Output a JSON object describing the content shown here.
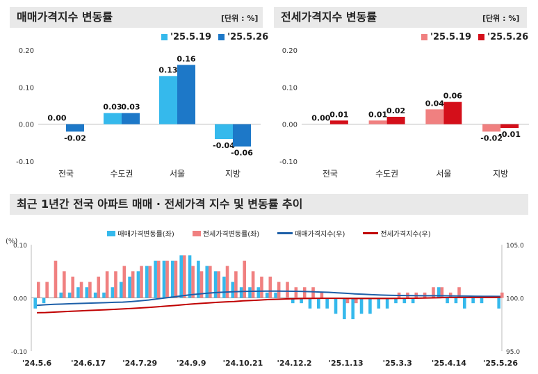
{
  "panels": [
    {
      "id": "sale",
      "title": "매매가격지수 변동률",
      "unit": "[단위 : %]",
      "chart_data": {
        "type": "bar",
        "categories": [
          "전국",
          "수도권",
          "서울",
          "지방"
        ],
        "ylim": [
          -0.1,
          0.2
        ],
        "yticks": [
          "0.20",
          "0.10",
          "0.00",
          "-0.10"
        ],
        "ytick_values": [
          0.2,
          0.1,
          0.0,
          -0.1
        ],
        "series": [
          {
            "name": "'25.5.19",
            "color": "#35b9ec",
            "values": [
              0.0,
              0.03,
              0.13,
              -0.04
            ],
            "labels": [
              "0.00",
              "0.03",
              "0.13",
              "-0.04"
            ]
          },
          {
            "name": "'25.5.26",
            "color": "#1d78c8",
            "values": [
              -0.02,
              0.03,
              0.16,
              -0.06
            ],
            "labels": [
              "-0.02",
              "0.03",
              "0.16",
              "-0.06"
            ]
          }
        ]
      }
    },
    {
      "id": "jeonse",
      "title": "전세가격지수 변동률",
      "unit": "[단위 : %]",
      "chart_data": {
        "type": "bar",
        "categories": [
          "전국",
          "수도권",
          "서울",
          "지방"
        ],
        "ylim": [
          -0.1,
          0.2
        ],
        "yticks": [
          "0.20",
          "0.10",
          "0.00",
          "-0.10"
        ],
        "ytick_values": [
          0.2,
          0.1,
          0.0,
          -0.1
        ],
        "series": [
          {
            "name": "'25.5.19",
            "color": "#f08080",
            "values": [
              0.0,
              0.01,
              0.04,
              -0.02
            ],
            "labels": [
              "0.00",
              "0.01",
              "0.04",
              "-0.02"
            ]
          },
          {
            "name": "'25.5.26",
            "color": "#d40f1a",
            "values": [
              0.01,
              0.02,
              0.06,
              -0.01
            ],
            "labels": [
              "0.01",
              "0.02",
              "0.06",
              "-0.01"
            ]
          }
        ]
      }
    }
  ],
  "trend": {
    "title": "최근 1년간 전국 아파트 매매 · 전세가격 지수 및 변동률 추이",
    "left_unit": "(%)",
    "chart_data": {
      "type": "bar-line",
      "left_ylim": [
        -0.1,
        0.1
      ],
      "left_ticks": [
        "0.10",
        "0.00",
        "-0.10"
      ],
      "left_tick_values": [
        0.1,
        0.0,
        -0.1
      ],
      "right_ylim": [
        95.0,
        105.0
      ],
      "right_ticks": [
        "105.0",
        "100.0",
        "95.0"
      ],
      "right_tick_values": [
        105.0,
        100.0,
        95.0
      ],
      "x_tick_labels": [
        "'24.5.6",
        "'24.6.17",
        "'24.7.29",
        "'24.9.9",
        "'24.10.21",
        "'24.12.2",
        "'25.1.13",
        "'25.3.3",
        "'25.4.14",
        "'25.5.26"
      ],
      "x_tick_index": [
        0,
        6,
        12,
        18,
        24,
        30,
        36,
        42,
        48,
        54
      ],
      "series": [
        {
          "name": "매매가격변동률(좌)",
          "kind": "bar",
          "color": "#35b9ec",
          "values": [
            -0.02,
            -0.01,
            0.0,
            0.01,
            0.01,
            0.02,
            0.02,
            0.01,
            0.01,
            0.02,
            0.03,
            0.04,
            0.05,
            0.06,
            0.07,
            0.07,
            0.07,
            0.08,
            0.08,
            0.07,
            0.06,
            0.05,
            0.04,
            0.03,
            0.02,
            0.02,
            0.02,
            0.01,
            0.01,
            0.0,
            -0.01,
            -0.01,
            -0.02,
            -0.02,
            -0.02,
            -0.03,
            -0.04,
            -0.04,
            -0.03,
            -0.03,
            -0.02,
            -0.02,
            -0.01,
            -0.01,
            -0.01,
            0.0,
            0.0,
            0.02,
            -0.01,
            -0.01,
            -0.02,
            -0.01,
            -0.01,
            0.0,
            -0.02
          ]
        },
        {
          "name": "전세가격변동률(좌)",
          "kind": "bar",
          "color": "#f08080",
          "values": [
            0.03,
            0.03,
            0.07,
            0.05,
            0.04,
            0.03,
            0.03,
            0.04,
            0.05,
            0.05,
            0.06,
            0.05,
            0.06,
            0.06,
            0.07,
            0.07,
            0.07,
            0.08,
            0.06,
            0.05,
            0.06,
            0.05,
            0.06,
            0.05,
            0.07,
            0.05,
            0.04,
            0.04,
            0.03,
            0.03,
            0.02,
            0.02,
            0.02,
            0.01,
            0.0,
            0.0,
            -0.01,
            -0.01,
            0.0,
            0.0,
            0.0,
            0.0,
            0.01,
            0.01,
            0.01,
            0.01,
            0.02,
            0.02,
            0.01,
            0.02,
            0.0,
            0.0,
            0.0,
            0.0,
            0.01
          ]
        },
        {
          "name": "매매가격지수(우)",
          "kind": "line",
          "color": "#1d5fa8",
          "values": [
            99.3,
            99.35,
            99.4,
            99.42,
            99.45,
            99.48,
            99.5,
            99.52,
            99.55,
            99.58,
            99.6,
            99.65,
            99.72,
            99.8,
            99.9,
            100.0,
            100.1,
            100.2,
            100.3,
            100.38,
            100.45,
            100.5,
            100.55,
            100.58,
            100.6,
            100.62,
            100.63,
            100.64,
            100.64,
            100.63,
            100.62,
            100.6,
            100.58,
            100.55,
            100.52,
            100.48,
            100.43,
            100.38,
            100.34,
            100.3,
            100.27,
            100.25,
            100.23,
            100.22,
            100.21,
            100.2,
            100.2,
            100.2,
            100.19,
            100.18,
            100.17,
            100.16,
            100.15,
            100.15,
            100.14
          ]
        },
        {
          "name": "전세가격지수(우)",
          "kind": "line",
          "color": "#c00000",
          "values": [
            98.6,
            98.62,
            98.66,
            98.7,
            98.74,
            98.78,
            98.82,
            98.85,
            98.88,
            98.92,
            98.96,
            99.0,
            99.05,
            99.1,
            99.16,
            99.22,
            99.28,
            99.35,
            99.42,
            99.48,
            99.53,
            99.58,
            99.62,
            99.66,
            99.72,
            99.76,
            99.8,
            99.84,
            99.87,
            99.9,
            99.92,
            99.94,
            99.95,
            99.96,
            99.96,
            99.96,
            99.95,
            99.94,
            99.94,
            99.94,
            99.94,
            99.94,
            99.95,
            99.96,
            99.97,
            99.98,
            100.0,
            100.02,
            100.03,
            100.04,
            100.04,
            100.04,
            100.05,
            100.05,
            100.06
          ]
        }
      ]
    }
  }
}
